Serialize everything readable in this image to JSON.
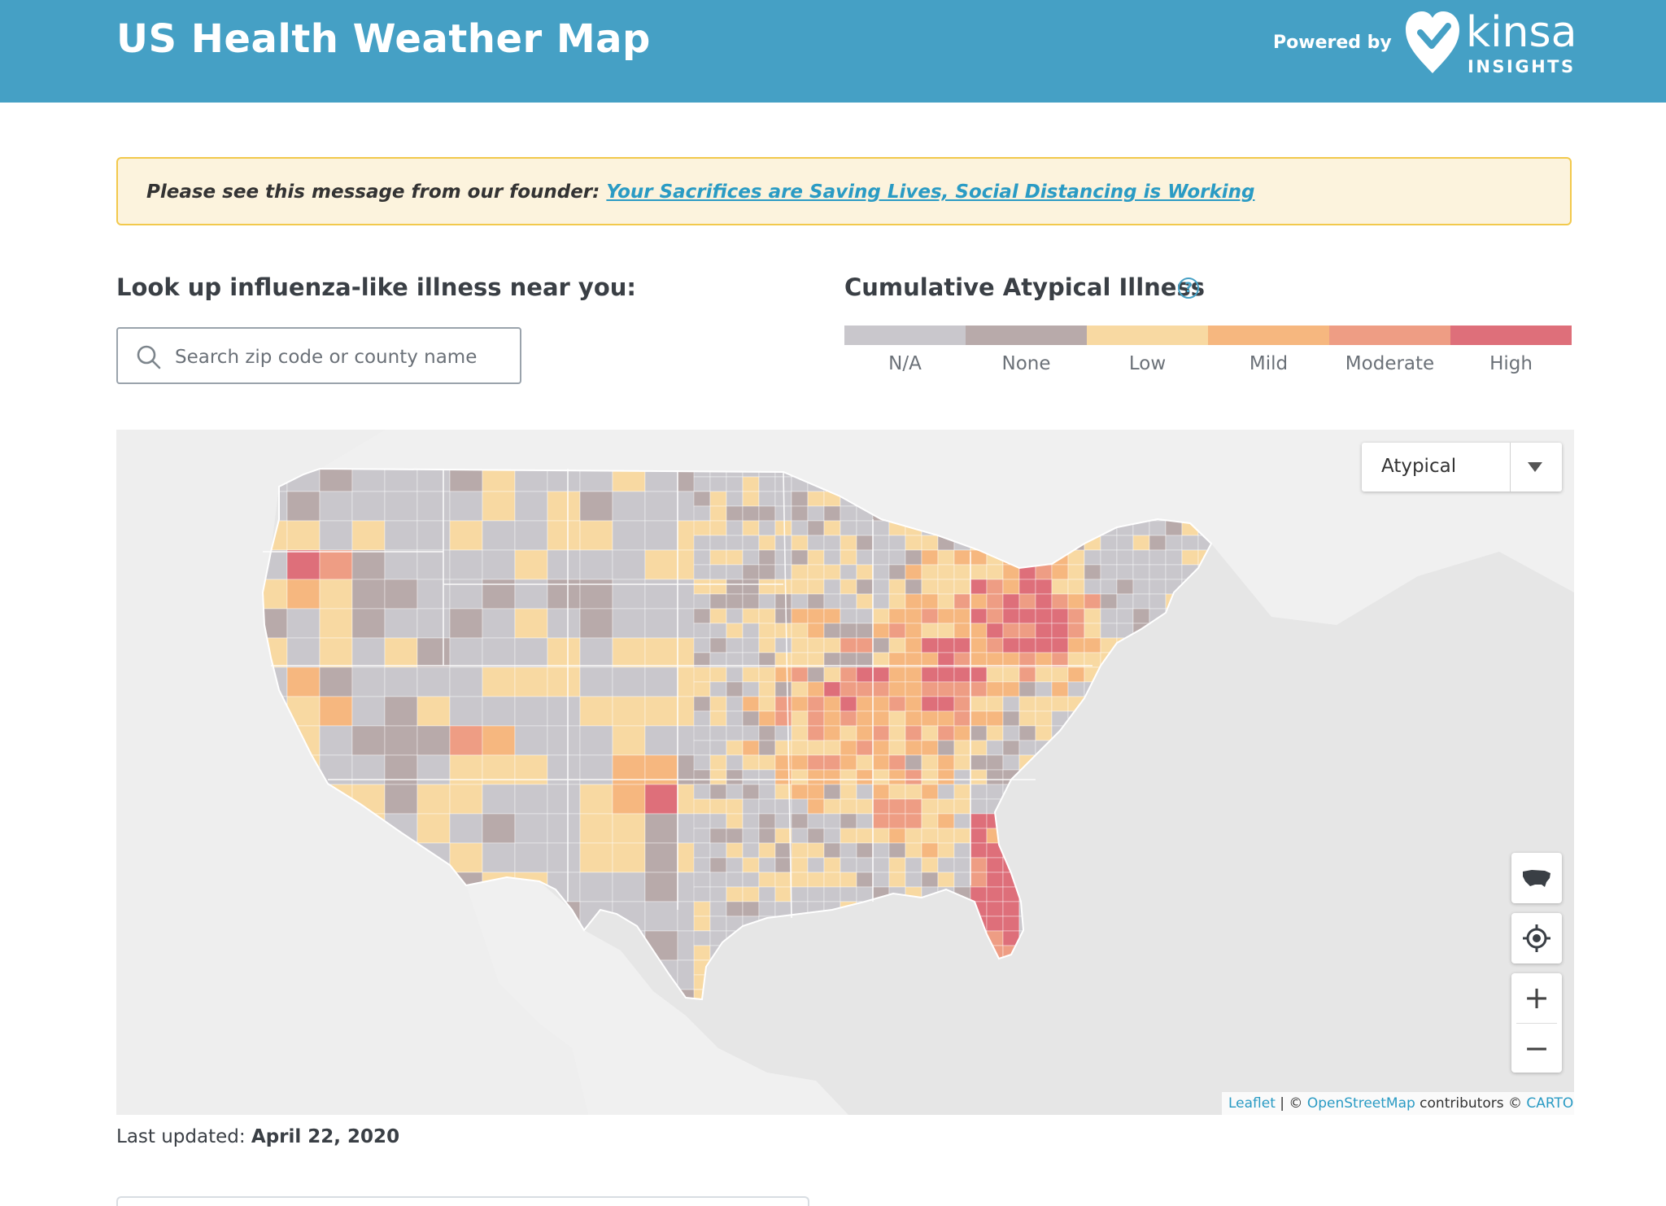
{
  "header": {
    "title": "US Health Weather Map",
    "powered_by": "Powered by",
    "logo_word": "kinsa",
    "logo_sub": "INSIGHTS"
  },
  "banner": {
    "prefix": "Please see this message from our founder:",
    "link_text": "Your Sacrifices are Saving Lives, Social Distancing is Working"
  },
  "lookup": {
    "label": "Look up influenza-like illness near you:",
    "placeholder": "Search zip code or county name"
  },
  "legend": {
    "title": "Cumulative Atypical Illness",
    "help": "?",
    "items": [
      {
        "label": "N/A",
        "color": "#c9c7cc"
      },
      {
        "label": "None",
        "color": "#b8aaaa"
      },
      {
        "label": "Low",
        "color": "#f8d9a2"
      },
      {
        "label": "Mild",
        "color": "#f6b77f"
      },
      {
        "label": "Moderate",
        "color": "#ee9d84"
      },
      {
        "label": "High",
        "color": "#de6f7a"
      }
    ]
  },
  "map": {
    "layer_select": "Atypical",
    "zoom_in": "+",
    "zoom_out": "−",
    "attribution": {
      "leaflet": "Leaflet",
      "sep": " | © ",
      "osm": "OpenStreetMap",
      "contrib": " contributors © ",
      "carto": "CARTO"
    },
    "colors": {
      "water": "#e6e6e6",
      "land": "#f2f2f2",
      "na": "#c9c7cc",
      "none": "#b8aaaa",
      "low": "#f8d9a2",
      "mild": "#f6b77f",
      "moderate": "#ee9d84",
      "high": "#de6f7a"
    }
  },
  "footer": {
    "updated_label": "Last updated:",
    "updated_value": "April 22, 2020"
  }
}
